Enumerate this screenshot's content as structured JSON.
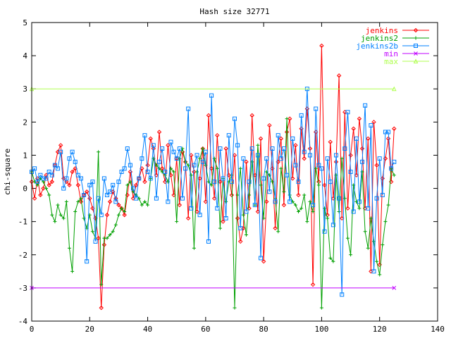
{
  "chart_data": {
    "type": "line",
    "title": "Hash size 32771",
    "xlabel": "",
    "ylabel": "chi-square",
    "xlim": [
      0,
      140
    ],
    "ylim": [
      -4,
      5
    ],
    "xticks": [
      "0",
      "20",
      "40",
      "60",
      "80",
      "100",
      "120",
      "140"
    ],
    "yticks": [
      "-4",
      "-3",
      "-2",
      "-1",
      "0",
      "1",
      "2",
      "3",
      "4",
      "5"
    ],
    "grid": false,
    "legend_position": "top-right",
    "series": [
      {
        "name": "jenkins",
        "color": "#ff0000",
        "marker": "diamond",
        "x": [
          0,
          1,
          2,
          3,
          4,
          5,
          6,
          7,
          8,
          9,
          10,
          11,
          12,
          13,
          14,
          15,
          16,
          17,
          18,
          19,
          20,
          21,
          22,
          23,
          24,
          25,
          26,
          27,
          28,
          29,
          30,
          31,
          32,
          33,
          34,
          35,
          36,
          37,
          38,
          39,
          40,
          41,
          42,
          43,
          44,
          45,
          46,
          47,
          48,
          49,
          50,
          51,
          52,
          53,
          54,
          55,
          56,
          57,
          58,
          59,
          60,
          61,
          62,
          63,
          64,
          65,
          66,
          67,
          68,
          69,
          70,
          71,
          72,
          73,
          74,
          75,
          76,
          77,
          78,
          79,
          80,
          81,
          82,
          83,
          84,
          85,
          86,
          87,
          88,
          89,
          90,
          91,
          92,
          93,
          94,
          95,
          96,
          97,
          98,
          99,
          100,
          101,
          102,
          103,
          104,
          105,
          106,
          107,
          108,
          109,
          110,
          111,
          112,
          113,
          114,
          115,
          116,
          117,
          118,
          119,
          120,
          121,
          122,
          123,
          124,
          125
        ],
        "y": [
          0.2,
          -0.3,
          0.3,
          -0.2,
          0.0,
          0.4,
          0.1,
          0.2,
          0.7,
          1.1,
          1.3,
          0.3,
          0.2,
          0.1,
          0.5,
          0.6,
          0.1,
          -0.4,
          -0.2,
          -0.1,
          -0.3,
          -0.6,
          -0.9,
          -1.5,
          -3.6,
          -1.7,
          -0.8,
          -0.4,
          -0.1,
          -0.3,
          -0.5,
          -0.6,
          -0.8,
          -0.2,
          0.5,
          -0.3,
          0.1,
          0.3,
          0.6,
          0.2,
          0.7,
          1.5,
          1.2,
          0.4,
          1.7,
          0.6,
          0.2,
          1.3,
          0.4,
          -0.2,
          0.9,
          -0.5,
          1.1,
          0.8,
          -0.9,
          1.0,
          0.5,
          -0.7,
          0.3,
          1.2,
          -0.4,
          2.2,
          0.6,
          -0.3,
          1.6,
          0.2,
          -1.0,
          1.2,
          0.4,
          -0.2,
          1.0,
          -0.9,
          -1.6,
          -1.2,
          0.8,
          -0.6,
          2.2,
          0.4,
          -0.7,
          1.5,
          -2.2,
          -0.4,
          1.9,
          0.6,
          -1.2,
          0.8,
          1.5,
          -0.5,
          1.7,
          2.1,
          0.3,
          1.3,
          -0.2,
          1.8,
          0.9,
          2.4,
          1.2,
          -2.9,
          1.7,
          0.2,
          4.3,
          0.1,
          -0.8,
          1.4,
          -0.3,
          0.8,
          3.4,
          -0.9,
          2.3,
          -0.6,
          1.0,
          1.8,
          0.4,
          2.1,
          1.2,
          -0.6,
          1.5,
          -2.5,
          2.0,
          0.7,
          -2.3,
          0.3,
          0.9,
          1.5,
          0.2,
          1.8
        ]
      },
      {
        "name": "jenkins2",
        "color": "#00a000",
        "marker": "plus",
        "x": [
          0,
          1,
          2,
          3,
          4,
          5,
          6,
          7,
          8,
          9,
          10,
          11,
          12,
          13,
          14,
          15,
          16,
          17,
          18,
          19,
          20,
          21,
          22,
          23,
          24,
          25,
          26,
          27,
          28,
          29,
          30,
          31,
          32,
          33,
          34,
          35,
          36,
          37,
          38,
          39,
          40,
          41,
          42,
          43,
          44,
          45,
          46,
          47,
          48,
          49,
          50,
          51,
          52,
          53,
          54,
          55,
          56,
          57,
          58,
          59,
          60,
          61,
          62,
          63,
          64,
          65,
          66,
          67,
          68,
          69,
          70,
          71,
          72,
          73,
          74,
          75,
          76,
          77,
          78,
          79,
          80,
          81,
          82,
          83,
          84,
          85,
          86,
          87,
          88,
          89,
          90,
          91,
          92,
          93,
          94,
          95,
          96,
          97,
          98,
          99,
          100,
          101,
          102,
          103,
          104,
          105,
          106,
          107,
          108,
          109,
          110,
          111,
          112,
          113,
          114,
          115,
          116,
          117,
          118,
          119,
          120,
          121,
          122,
          123,
          124,
          125
        ],
        "y": [
          0.5,
          0.2,
          0.1,
          0.3,
          0.2,
          0.0,
          -0.2,
          -0.8,
          -1.0,
          -0.5,
          -0.8,
          -0.9,
          -0.4,
          -1.8,
          -2.5,
          -0.7,
          -0.4,
          -0.3,
          -0.9,
          -1.2,
          -0.8,
          -1.3,
          -1.5,
          1.1,
          -2.9,
          -1.5,
          -1.5,
          -1.4,
          -1.3,
          -1.1,
          -0.8,
          -0.6,
          -0.7,
          0.1,
          0.2,
          -0.1,
          -0.2,
          -0.3,
          -0.5,
          -0.4,
          -0.5,
          0.3,
          0.9,
          0.7,
          0.6,
          0.5,
          0.4,
          0.2,
          0.6,
          0.5,
          -1.0,
          0.9,
          1.2,
          0.8,
          0.7,
          0.4,
          -1.8,
          0.5,
          0.9,
          1.2,
          0.7,
          0.2,
          0.1,
          0.9,
          0.6,
          -1.2,
          0.3,
          -0.4,
          0.2,
          0.4,
          -3.6,
          -0.2,
          0.6,
          -0.8,
          -1.4,
          -0.2,
          0.8,
          -0.5,
          1.3,
          0.1,
          -0.9,
          0.5,
          0.4,
          0.2,
          -0.3,
          -1.3,
          0.6,
          -0.1,
          2.1,
          -0.2,
          -0.4,
          -0.5,
          -0.7,
          -0.6,
          -0.2,
          -1.0,
          -0.4,
          -0.7,
          0.6,
          0.1,
          -3.6,
          -0.6,
          -0.9,
          -2.1,
          -2.2,
          0.4,
          -0.7,
          0.9,
          -0.3,
          -1.5,
          -2.0,
          0.1,
          -0.4,
          -0.6,
          0.5,
          -1.3,
          -1.8,
          -0.9,
          -1.6,
          -2.2,
          -2.6,
          -1.7,
          -1.0,
          -0.5,
          0.6,
          0.4
        ]
      },
      {
        "name": "jenkins2b",
        "color": "#0080ff",
        "marker": "square",
        "x": [
          0,
          1,
          2,
          3,
          4,
          5,
          6,
          7,
          8,
          9,
          10,
          11,
          12,
          13,
          14,
          15,
          16,
          17,
          18,
          19,
          20,
          21,
          22,
          23,
          24,
          25,
          26,
          27,
          28,
          29,
          30,
          31,
          32,
          33,
          34,
          35,
          36,
          37,
          38,
          39,
          40,
          41,
          42,
          43,
          44,
          45,
          46,
          47,
          48,
          49,
          50,
          51,
          52,
          53,
          54,
          55,
          56,
          57,
          58,
          59,
          60,
          61,
          62,
          63,
          64,
          65,
          66,
          67,
          68,
          69,
          70,
          71,
          72,
          73,
          74,
          75,
          76,
          77,
          78,
          79,
          80,
          81,
          82,
          83,
          84,
          85,
          86,
          87,
          88,
          89,
          90,
          91,
          92,
          93,
          94,
          95,
          96,
          97,
          98,
          99,
          100,
          101,
          102,
          103,
          104,
          105,
          106,
          107,
          108,
          109,
          110,
          111,
          112,
          113,
          114,
          115,
          116,
          117,
          118,
          119,
          120,
          121,
          122,
          123,
          124,
          125
        ],
        "y": [
          0.5,
          0.6,
          0.2,
          0.4,
          0.3,
          0.3,
          0.5,
          0.4,
          0.7,
          0.6,
          1.1,
          0.0,
          0.3,
          0.9,
          1.1,
          0.8,
          0.4,
          0.3,
          -0.2,
          -2.2,
          0.1,
          0.2,
          -1.6,
          -0.3,
          -0.8,
          0.3,
          -0.2,
          -0.1,
          0.1,
          -0.4,
          0.2,
          0.5,
          0.6,
          1.2,
          0.7,
          0.0,
          -0.3,
          0.3,
          0.9,
          1.6,
          0.5,
          0.3,
          1.3,
          -0.3,
          0.8,
          1.2,
          0.5,
          -0.4,
          1.4,
          1.1,
          0.9,
          1.2,
          -0.3,
          0.6,
          2.4,
          -0.6,
          0.7,
          1.0,
          -0.8,
          0.8,
          1.1,
          -1.6,
          2.8,
          0.2,
          -0.6,
          1.2,
          0.3,
          -0.9,
          1.6,
          0.2,
          2.1,
          1.3,
          -1.2,
          0.9,
          -0.7,
          0.2,
          1.2,
          -0.5,
          1.0,
          -2.1,
          0.3,
          0.9,
          -0.1,
          1.2,
          -0.4,
          1.6,
          0.9,
          1.2,
          0.4,
          -0.4,
          1.5,
          0.7,
          0.2,
          2.2,
          1.1,
          3.0,
          1.0,
          -0.5,
          2.4,
          0.7,
          0.6,
          -1.3,
          0.9,
          0.2,
          -1.1,
          1.0,
          -0.3,
          -3.2,
          1.2,
          2.3,
          0.5,
          -0.7,
          1.5,
          -0.4,
          0.8,
          2.5,
          -0.6,
          1.9,
          -2.5,
          -0.3,
          0.9,
          -0.2,
          1.7,
          1.7,
          0.6,
          0.8
        ]
      },
      {
        "name": "min",
        "color": "#c000ff",
        "marker": "x",
        "x": [
          0,
          125
        ],
        "y": [
          -3,
          -3
        ]
      },
      {
        "name": "max",
        "color": "#b0ff50",
        "marker": "triangle",
        "x": [
          0,
          125
        ],
        "y": [
          3,
          3
        ]
      }
    ]
  }
}
